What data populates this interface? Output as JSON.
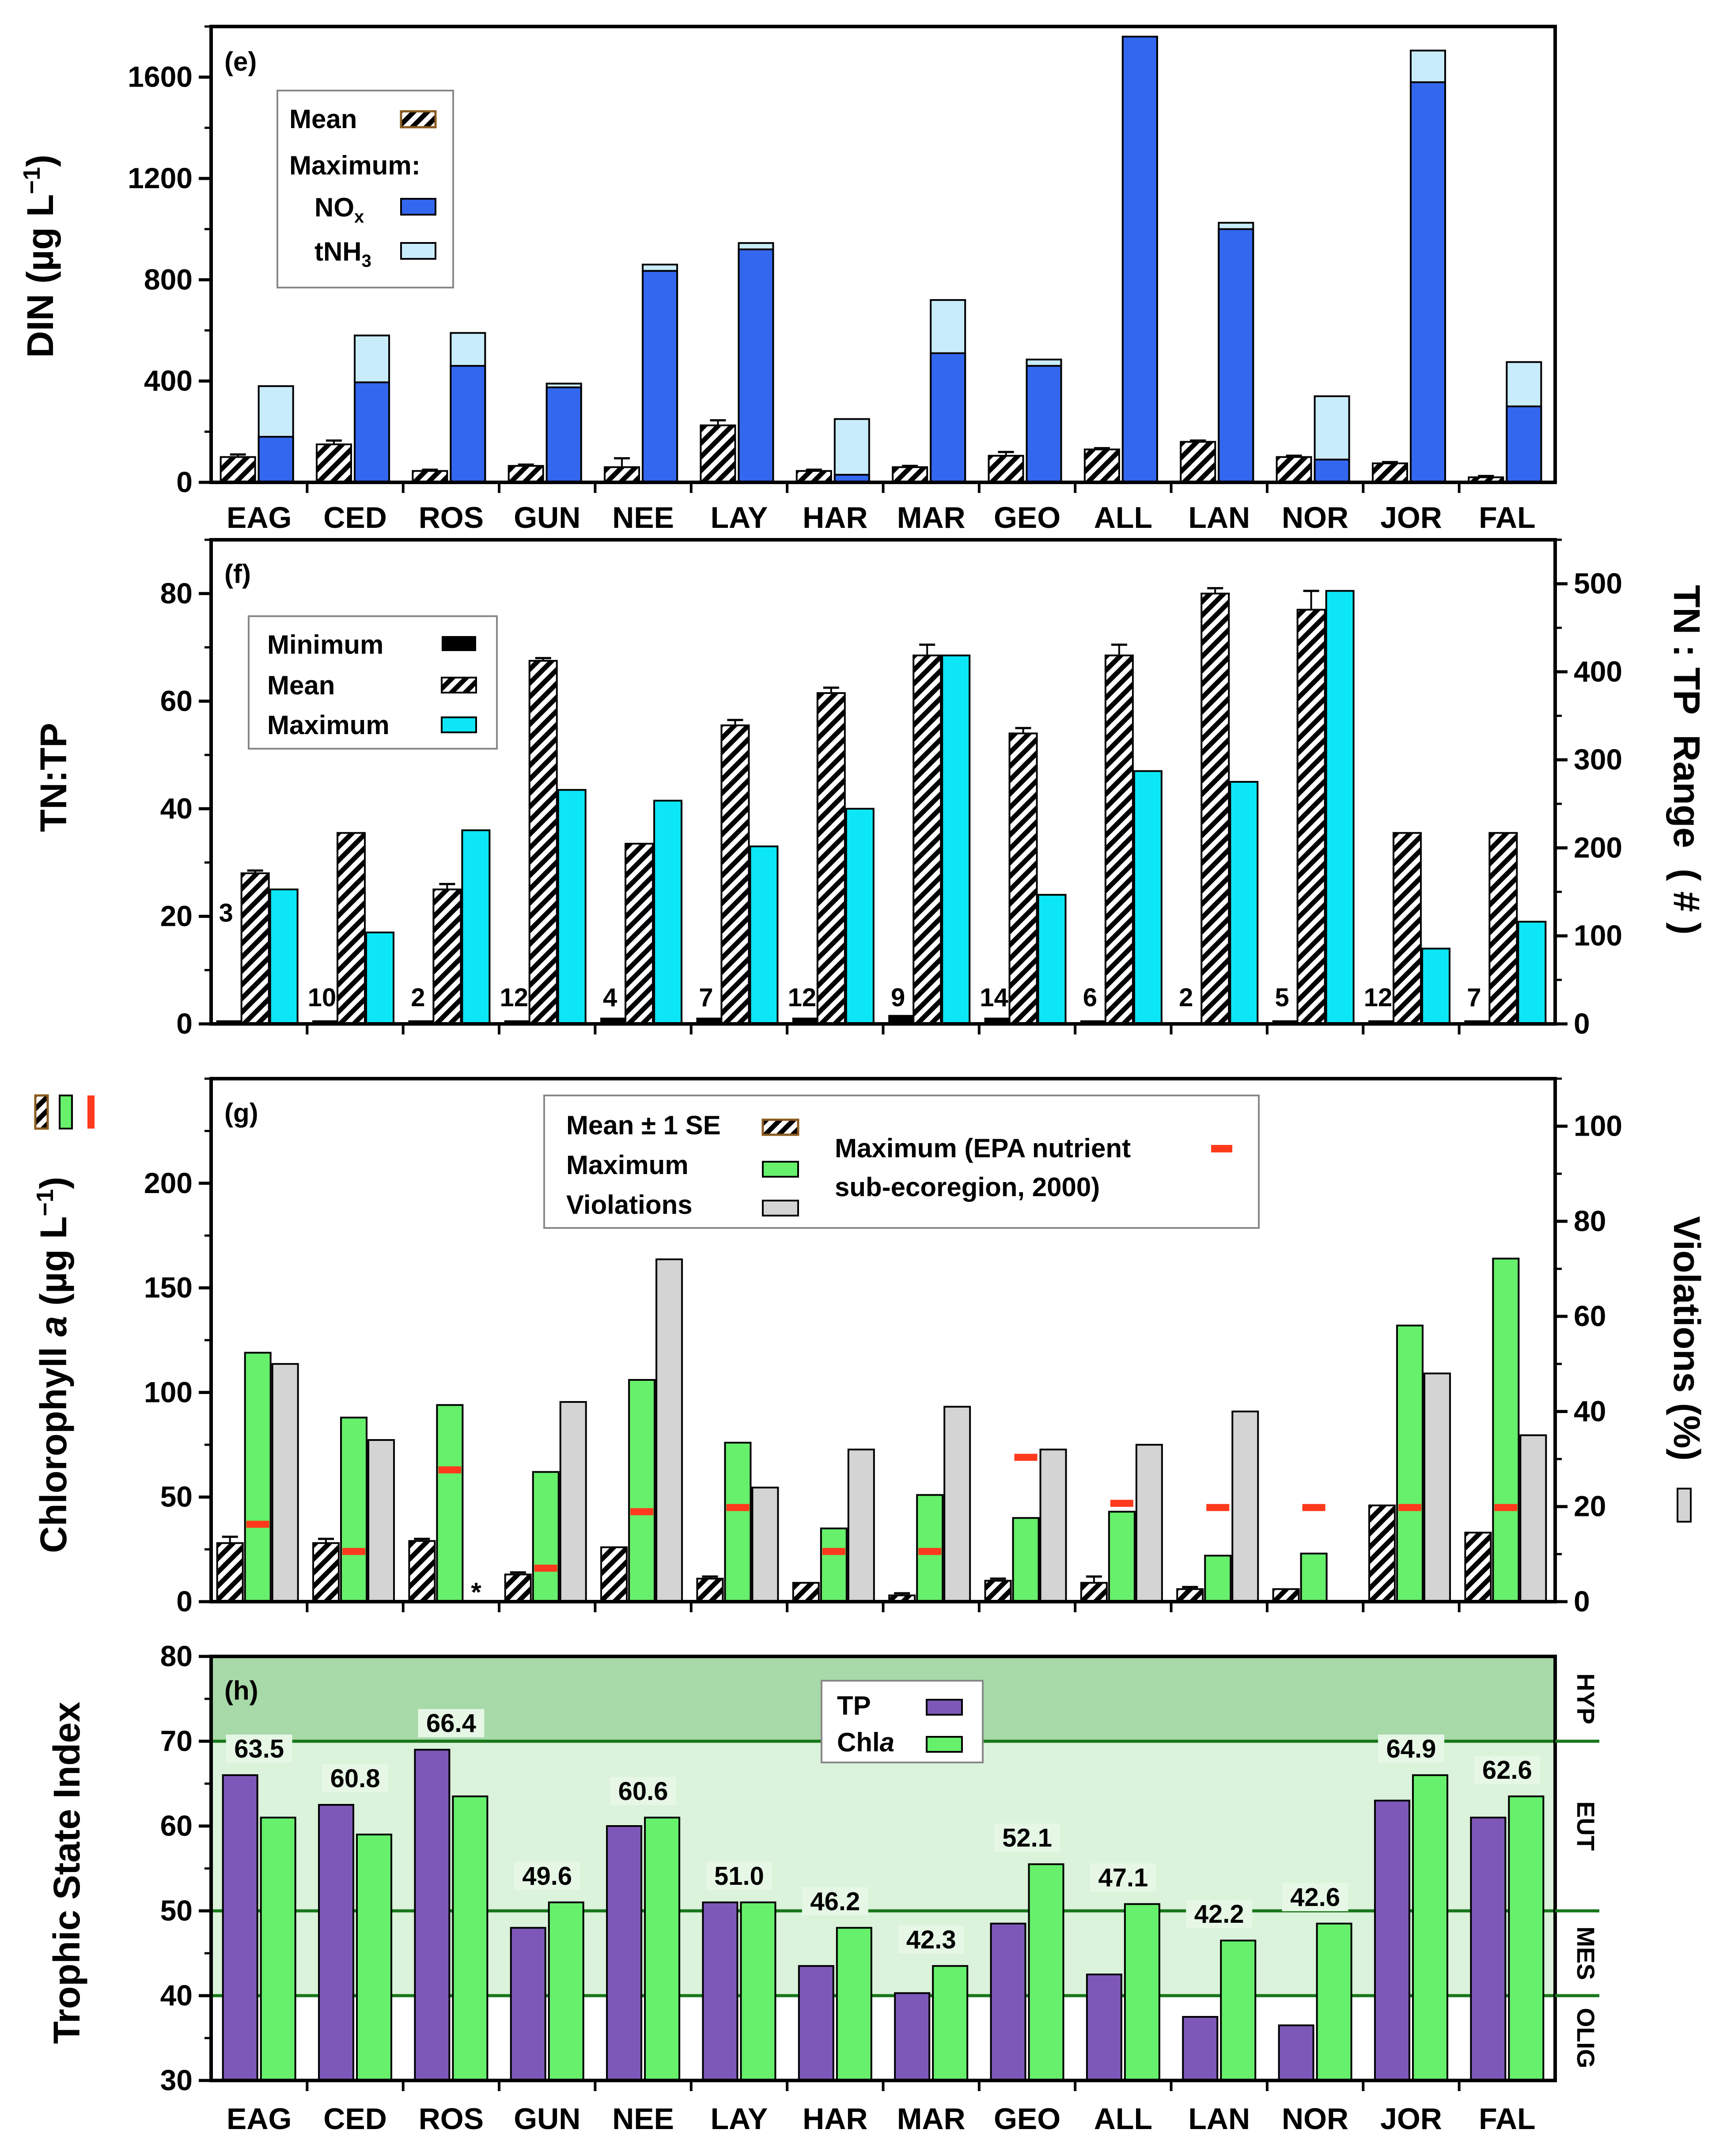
{
  "colors": {
    "nox": "#3467ef",
    "tnh3": "#c9ecfb",
    "cyan": "#0ce6f6",
    "minimum": "#000000",
    "chla_max": "#66f06b",
    "violations": "#d4d4d4",
    "epa": "#ff3a1c",
    "tp": "#7e58b8",
    "tsi_chla": "#66f06b",
    "hyp_zone": "#a8d9a8",
    "eut_zone": "#dbf2db",
    "thresh_line": "#18771a"
  },
  "stations": [
    "EAG",
    "CED",
    "ROS",
    "GUN",
    "NEE",
    "LAY",
    "HAR",
    "MAR",
    "GEO",
    "ALL",
    "LAN",
    "NOR",
    "JOR",
    "FAL"
  ],
  "chart_data": [
    {
      "panel": "(e)",
      "type": "bar",
      "ylabel": "DIN (µg L⁻¹)",
      "ylabel_main": "DIN (µg L",
      "ylabel_sup": "−1",
      "ylabel_close": ")",
      "ylim": [
        0,
        1800
      ],
      "yticks": [
        "0",
        "400",
        "800",
        "1200",
        "1600"
      ],
      "categories": [
        "EAG",
        "CED",
        "ROS",
        "GUN",
        "NEE",
        "LAY",
        "HAR",
        "MAR",
        "GEO",
        "ALL",
        "LAN",
        "NOR",
        "JOR",
        "FAL"
      ],
      "series": [
        {
          "name": "Mean",
          "values": [
            100,
            150,
            45,
            65,
            60,
            225,
            45,
            60,
            105,
            130,
            160,
            100,
            75,
            20
          ],
          "se": [
            10,
            15,
            5,
            5,
            35,
            20,
            5,
            5,
            15,
            5,
            5,
            5,
            5,
            5
          ]
        },
        {
          "name": "NOx",
          "values": [
            180,
            395,
            460,
            375,
            835,
            920,
            30,
            510,
            460,
            1760,
            1000,
            90,
            1580,
            300
          ]
        },
        {
          "name": "tNH3",
          "values": [
            380,
            580,
            590,
            390,
            860,
            945,
            250,
            720,
            485,
            1760,
            1025,
            340,
            1705,
            475
          ]
        }
      ],
      "legend": {
        "mean": "Mean",
        "maximum": "Maximum:",
        "nox_main": "NO",
        "nox_sub": "x",
        "tnh3_main": "tNH",
        "tnh3_sub": "3"
      }
    },
    {
      "panel": "(f)",
      "type": "bar",
      "ylabel": "TN:TP",
      "ylabel2": "TN : TP  Range  ( # )",
      "ylim": [
        0,
        90
      ],
      "y2lim": [
        0,
        550
      ],
      "yticks": [
        "0",
        "20",
        "40",
        "60",
        "80"
      ],
      "y2ticks": [
        "0",
        "100",
        "200",
        "300",
        "400",
        "500"
      ],
      "categories": [
        "EAG",
        "CED",
        "ROS",
        "GUN",
        "NEE",
        "LAY",
        "HAR",
        "MAR",
        "GEO",
        "ALL",
        "LAN",
        "NOR",
        "JOR",
        "FAL"
      ],
      "series": [
        {
          "name": "Minimum",
          "values": [
            0.5,
            0.5,
            0.5,
            0.5,
            1,
            1,
            1,
            1.5,
            1,
            0.5,
            0,
            0.5,
            0.5,
            0.5
          ]
        },
        {
          "name": "Mean",
          "values": [
            28,
            35.5,
            25,
            67.5,
            33.5,
            55.5,
            61.5,
            68.5,
            54,
            68.5,
            80,
            77,
            35.5,
            35.5
          ],
          "se": [
            0.5,
            0,
            1,
            0.5,
            0,
            1,
            1,
            2,
            1,
            2,
            1,
            3.5,
            0,
            0
          ]
        },
        {
          "name": "Maximum",
          "values": [
            25,
            17,
            36,
            43.5,
            41.5,
            33,
            40,
            68.5,
            24,
            47,
            45,
            80.5,
            14,
            19
          ]
        }
      ],
      "range_labels": [
        "3",
        "10",
        "2",
        "12",
        "4",
        "7",
        "12",
        "9",
        "14",
        "6",
        "2",
        "5",
        "12",
        "7"
      ],
      "legend": {
        "minimum": "Minimum",
        "mean": "Mean",
        "maximum": "Maximum"
      }
    },
    {
      "panel": "(g)",
      "type": "bar",
      "ylabel": "Chlorophyll a (µg L⁻¹)",
      "ylabel_main": "Chlorophyll ",
      "ylabel_italic": "a",
      "ylabel_units": " (µg L",
      "ylabel_sup": "−1",
      "ylabel_close": ")",
      "ylabel2": "Violations (%)",
      "ylim": [
        0,
        250
      ],
      "y2lim": [
        0,
        110
      ],
      "yticks": [
        "0",
        "50",
        "100",
        "150",
        "200"
      ],
      "y2ticks": [
        "0",
        "20",
        "40",
        "60",
        "80",
        "100"
      ],
      "categories": [
        "EAG",
        "CED",
        "ROS",
        "GUN",
        "NEE",
        "LAY",
        "HAR",
        "MAR",
        "GEO",
        "ALL",
        "LAN",
        "NOR",
        "JOR",
        "FAL"
      ],
      "series": [
        {
          "name": "Mean",
          "values": [
            28,
            28,
            29,
            13,
            26,
            11,
            9,
            3,
            10,
            9,
            6,
            6,
            46,
            33
          ],
          "se": [
            3,
            2,
            1,
            1,
            0,
            1,
            0,
            1,
            1,
            3,
            1,
            0,
            0,
            0
          ]
        },
        {
          "name": "Maximum",
          "values": [
            119,
            88,
            94,
            62,
            106,
            76,
            35,
            51,
            40,
            43,
            22,
            23,
            132,
            164
          ]
        },
        {
          "name": "EPA nutrient sub-ecoregion maximum",
          "values": [
            37,
            24,
            63,
            16,
            43,
            45,
            24,
            24,
            69,
            47,
            45,
            45,
            45,
            45
          ]
        },
        {
          "name": "Violations (%)",
          "values": [
            50,
            34,
            null,
            42,
            72,
            24,
            32,
            41,
            32,
            33,
            40,
            null,
            48,
            35
          ]
        }
      ],
      "asterisk": "*",
      "legend": {
        "mean_se": "Mean ± 1 SE",
        "maximum": "Maximum",
        "violations": "Violations",
        "epa_line1": "Maximum (EPA nutrient",
        "epa_line2": "sub-ecoregion, 2000)"
      }
    },
    {
      "panel": "(h)",
      "type": "bar",
      "ylabel": "Trophic State Index",
      "ylim": [
        30,
        80
      ],
      "yticks": [
        "30",
        "40",
        "50",
        "60",
        "70",
        "80"
      ],
      "categories": [
        "EAG",
        "CED",
        "ROS",
        "GUN",
        "NEE",
        "LAY",
        "HAR",
        "MAR",
        "GEO",
        "ALL",
        "LAN",
        "NOR",
        "JOR",
        "FAL"
      ],
      "series": [
        {
          "name": "TP",
          "values": [
            66,
            62.5,
            69,
            48,
            60,
            51,
            43.5,
            40.3,
            48.5,
            42.5,
            37.5,
            36.5,
            63,
            61
          ]
        },
        {
          "name": "Chla",
          "values": [
            61,
            59,
            63.5,
            51,
            61,
            51,
            48,
            43.5,
            55.5,
            50.8,
            46.5,
            48.5,
            66,
            63.5
          ]
        }
      ],
      "averages": [
        "63.5",
        "60.8",
        "66.4",
        "49.6",
        "60.6",
        "51.0",
        "46.2",
        "42.3",
        "52.1",
        "47.1",
        "42.2",
        "42.6",
        "64.9",
        "62.6"
      ],
      "average_values": [
        63.5,
        60.8,
        66.4,
        49.6,
        60.6,
        51.0,
        46.2,
        42.3,
        52.1,
        47.1,
        42.2,
        42.6,
        64.9,
        62.6
      ],
      "zones": [
        "HYP",
        "EUT",
        "MES",
        "OLIG"
      ],
      "thresholds": [
        40,
        50,
        70
      ],
      "legend": {
        "tp": "TP",
        "chla_main": "Chl",
        "chla_italic": "a"
      }
    }
  ]
}
